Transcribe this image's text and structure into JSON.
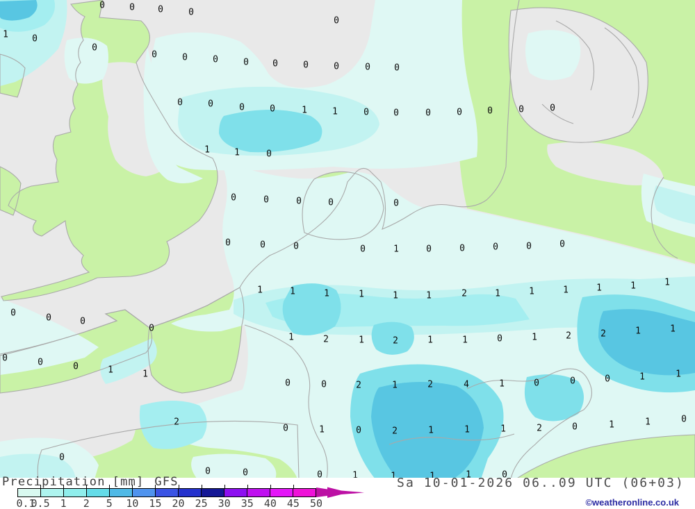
{
  "legend": {
    "title": "Precipitation",
    "unit": "[mm]",
    "model": "GFS",
    "ticks": [
      "0.1",
      "0.5",
      "1",
      "2",
      "5",
      "10",
      "15",
      "20",
      "25",
      "30",
      "35",
      "40",
      "45",
      "50"
    ],
    "segment_colors": [
      "#d9f9f0",
      "#aef4ef",
      "#8feeec",
      "#64dce8",
      "#4fb9e6",
      "#4f93ee",
      "#3a53e4",
      "#2431cd",
      "#141795",
      "#8d0ff0",
      "#bf10f0",
      "#e416f8",
      "#ef12d8"
    ],
    "arrow_color": "#bc10a4"
  },
  "footer": {
    "datetime": "Sa 10-01-2026 06..09 UTC (06+03)",
    "copyright": "©weatheronline.co.uk"
  },
  "map": {
    "colors": {
      "sea": "#e9e9e9",
      "land": "#c9f2a6",
      "p01": "#dff8f4",
      "p05": "#c2f3f1",
      "p1": "#a4eef0",
      "p2": "#7fe0ea",
      "p5": "#58c6e2",
      "p8": "#3fa9d8",
      "coast": "#a9a9a9"
    },
    "values": [
      [
        0,
        147,
        8
      ],
      [
        0,
        190,
        11
      ],
      [
        0,
        231,
        14
      ],
      [
        0,
        275,
        18
      ],
      [
        0,
        484,
        30
      ],
      [
        1,
        8,
        50
      ],
      [
        0,
        50,
        56
      ],
      [
        0,
        136,
        69
      ],
      [
        0,
        222,
        79
      ],
      [
        0,
        266,
        83
      ],
      [
        0,
        310,
        86
      ],
      [
        0,
        354,
        90
      ],
      [
        0,
        396,
        92
      ],
      [
        0,
        440,
        94
      ],
      [
        0,
        484,
        96
      ],
      [
        0,
        529,
        97
      ],
      [
        0,
        571,
        98
      ],
      [
        0,
        259,
        148
      ],
      [
        0,
        303,
        150
      ],
      [
        0,
        348,
        155
      ],
      [
        0,
        392,
        157
      ],
      [
        1,
        438,
        159
      ],
      [
        1,
        482,
        161
      ],
      [
        0,
        527,
        162
      ],
      [
        0,
        570,
        163
      ],
      [
        0,
        616,
        163
      ],
      [
        0,
        661,
        162
      ],
      [
        0,
        705,
        160
      ],
      [
        0,
        750,
        158
      ],
      [
        0,
        795,
        156
      ],
      [
        1,
        298,
        216
      ],
      [
        1,
        341,
        220
      ],
      [
        0,
        387,
        222
      ],
      [
        0,
        336,
        285
      ],
      [
        0,
        383,
        288
      ],
      [
        0,
        430,
        290
      ],
      [
        0,
        476,
        292
      ],
      [
        0,
        570,
        293
      ],
      [
        0,
        328,
        350
      ],
      [
        0,
        378,
        353
      ],
      [
        0,
        426,
        355
      ],
      [
        0,
        522,
        359
      ],
      [
        1,
        570,
        359
      ],
      [
        0,
        617,
        359
      ],
      [
        0,
        665,
        358
      ],
      [
        0,
        713,
        356
      ],
      [
        0,
        761,
        355
      ],
      [
        0,
        809,
        352
      ],
      [
        1,
        374,
        418
      ],
      [
        1,
        421,
        420
      ],
      [
        1,
        470,
        423
      ],
      [
        1,
        520,
        424
      ],
      [
        1,
        569,
        426
      ],
      [
        1,
        617,
        426
      ],
      [
        2,
        668,
        423
      ],
      [
        1,
        716,
        423
      ],
      [
        1,
        765,
        420
      ],
      [
        1,
        814,
        418
      ],
      [
        1,
        862,
        415
      ],
      [
        1,
        911,
        412
      ],
      [
        1,
        960,
        407
      ],
      [
        0,
        19,
        451
      ],
      [
        0,
        70,
        458
      ],
      [
        0,
        119,
        463
      ],
      [
        0,
        218,
        473
      ],
      [
        1,
        419,
        486
      ],
      [
        2,
        469,
        489
      ],
      [
        1,
        520,
        490
      ],
      [
        2,
        569,
        491
      ],
      [
        1,
        619,
        490
      ],
      [
        1,
        669,
        490
      ],
      [
        0,
        719,
        488
      ],
      [
        1,
        769,
        486
      ],
      [
        2,
        818,
        484
      ],
      [
        2,
        868,
        481
      ],
      [
        1,
        918,
        477
      ],
      [
        1,
        968,
        474
      ],
      [
        0,
        7,
        516
      ],
      [
        0,
        58,
        522
      ],
      [
        0,
        109,
        528
      ],
      [
        1,
        159,
        533
      ],
      [
        1,
        209,
        539
      ],
      [
        0,
        414,
        552
      ],
      [
        0,
        466,
        554
      ],
      [
        2,
        516,
        555
      ],
      [
        1,
        568,
        555
      ],
      [
        2,
        619,
        554
      ],
      [
        4,
        671,
        554
      ],
      [
        1,
        722,
        553
      ],
      [
        0,
        772,
        552
      ],
      [
        0,
        824,
        549
      ],
      [
        0,
        874,
        546
      ],
      [
        1,
        924,
        543
      ],
      [
        1,
        976,
        539
      ],
      [
        2,
        254,
        608
      ],
      [
        0,
        411,
        617
      ],
      [
        1,
        463,
        619
      ],
      [
        0,
        516,
        620
      ],
      [
        2,
        568,
        621
      ],
      [
        1,
        620,
        620
      ],
      [
        1,
        672,
        619
      ],
      [
        1,
        724,
        618
      ],
      [
        2,
        776,
        617
      ],
      [
        0,
        827,
        615
      ],
      [
        1,
        880,
        612
      ],
      [
        1,
        932,
        608
      ],
      [
        0,
        984,
        604
      ],
      [
        0,
        89,
        659
      ],
      [
        0,
        299,
        679
      ],
      [
        0,
        353,
        681
      ],
      [
        0,
        460,
        684
      ],
      [
        1,
        511,
        685
      ],
      [
        1,
        566,
        686
      ],
      [
        1,
        622,
        686
      ],
      [
        1,
        674,
        684
      ],
      [
        0,
        726,
        684
      ]
    ]
  }
}
